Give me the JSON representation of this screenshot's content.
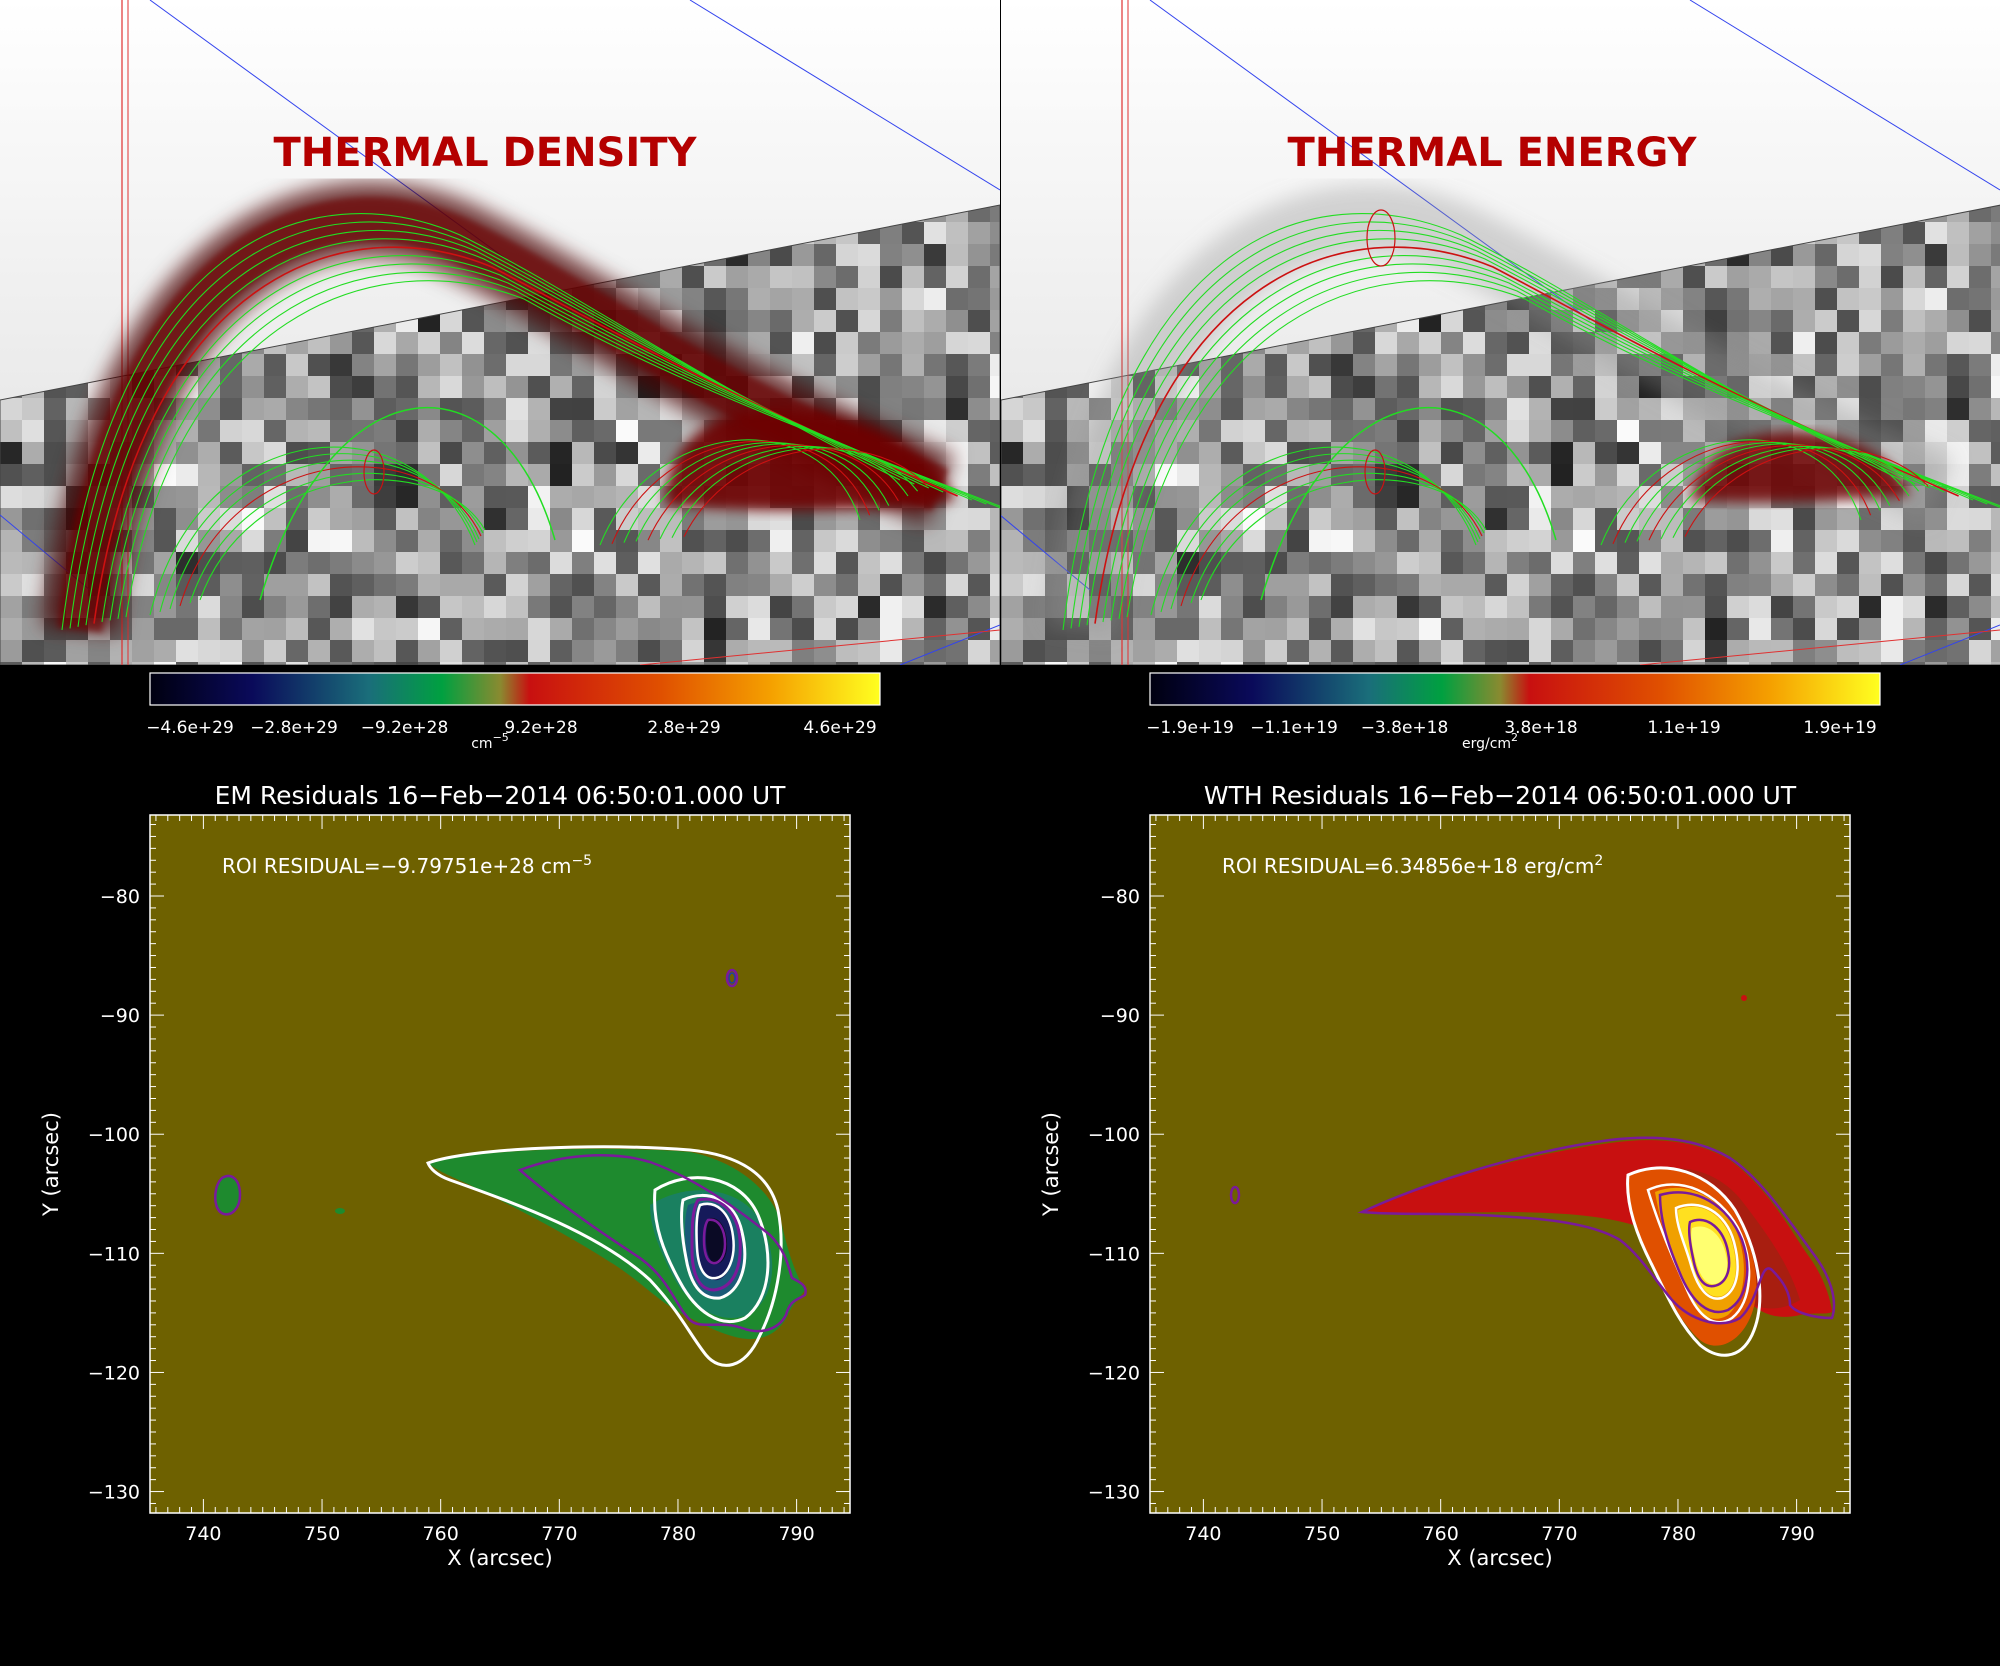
{
  "colors": {
    "background": "#000000",
    "plot_bg": "#6e6100",
    "title_red": "#b40000",
    "field_green": "#22dd22",
    "field_red": "#cc1111",
    "contour_white": "#ffffff",
    "contour_purple": "#7a1a9a",
    "axis_blue": "#3344ee"
  },
  "panels_3d": [
    {
      "id": "density",
      "title": "THERMAL DENSITY"
    },
    {
      "id": "energy",
      "title": "THERMAL ENERGY"
    }
  ],
  "colorbars": [
    {
      "id": "em",
      "ticks": [
        "−4.6e+29",
        "−2.8e+29",
        "−9.2e+28",
        "9.2e+28",
        "2.8e+29",
        "4.6e+29"
      ],
      "unit": "cm",
      "unit_exp": "−5"
    },
    {
      "id": "wth",
      "ticks": [
        "−1.9e+19",
        "−1.1e+19",
        "−3.8e+18",
        "3.8e+18",
        "1.1e+19",
        "1.9e+19"
      ],
      "unit": "erg/cm",
      "unit_exp": "2"
    }
  ],
  "chart_data": [
    {
      "type": "heatmap",
      "title": "EM Residuals 16−Feb−2014 06:50:01.000 UT",
      "xlabel": "X (arcsec)",
      "ylabel": "Y (arcsec)",
      "xlim": [
        735.5,
        794.5
      ],
      "ylim": [
        -131.8,
        -73.2
      ],
      "xticks": [
        740,
        750,
        760,
        770,
        780,
        790
      ],
      "yticks": [
        -80,
        -90,
        -100,
        -110,
        -120,
        -130
      ],
      "annotation_text": "ROI RESIDUAL=−9.79751e+28 cm",
      "annotation_exp": "−5"
    },
    {
      "type": "heatmap",
      "title": "WTH Residuals 16−Feb−2014 06:50:01.000 UT",
      "xlabel": "X (arcsec)",
      "ylabel": "Y (arcsec)",
      "xlim": [
        735.5,
        794.5
      ],
      "ylim": [
        -131.8,
        -73.2
      ],
      "xticks": [
        740,
        750,
        760,
        770,
        780,
        790
      ],
      "yticks": [
        -80,
        -90,
        -100,
        -110,
        -120,
        -130
      ],
      "annotation_text": "ROI RESIDUAL=6.34856e+18 erg/cm",
      "annotation_exp": "2"
    }
  ]
}
